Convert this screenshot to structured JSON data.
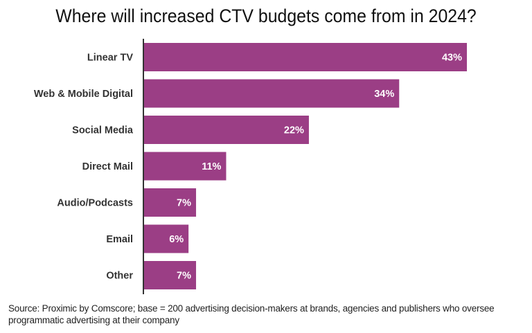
{
  "chart_data": {
    "type": "bar",
    "orientation": "horizontal",
    "title": "Where will increased CTV budgets come from in 2024?",
    "categories": [
      "Linear TV",
      "Web & Mobile Digital",
      "Social Media",
      "Direct Mail",
      "Audio/Podcasts",
      "Email",
      "Other"
    ],
    "values": [
      43,
      34,
      22,
      11,
      7,
      6,
      7
    ],
    "data_labels": [
      "43%",
      "34%",
      "22%",
      "11%",
      "7%",
      "6%",
      "7%"
    ],
    "xlabel": "",
    "ylabel": "",
    "xlim": [
      0,
      43
    ],
    "grid": false,
    "bar_color": "#9b3e85",
    "source": "Source: Proximic by Comscore; base = 200 advertising decision-makers at brands, agencies and publishers who oversee programmatic advertising at their company"
  }
}
